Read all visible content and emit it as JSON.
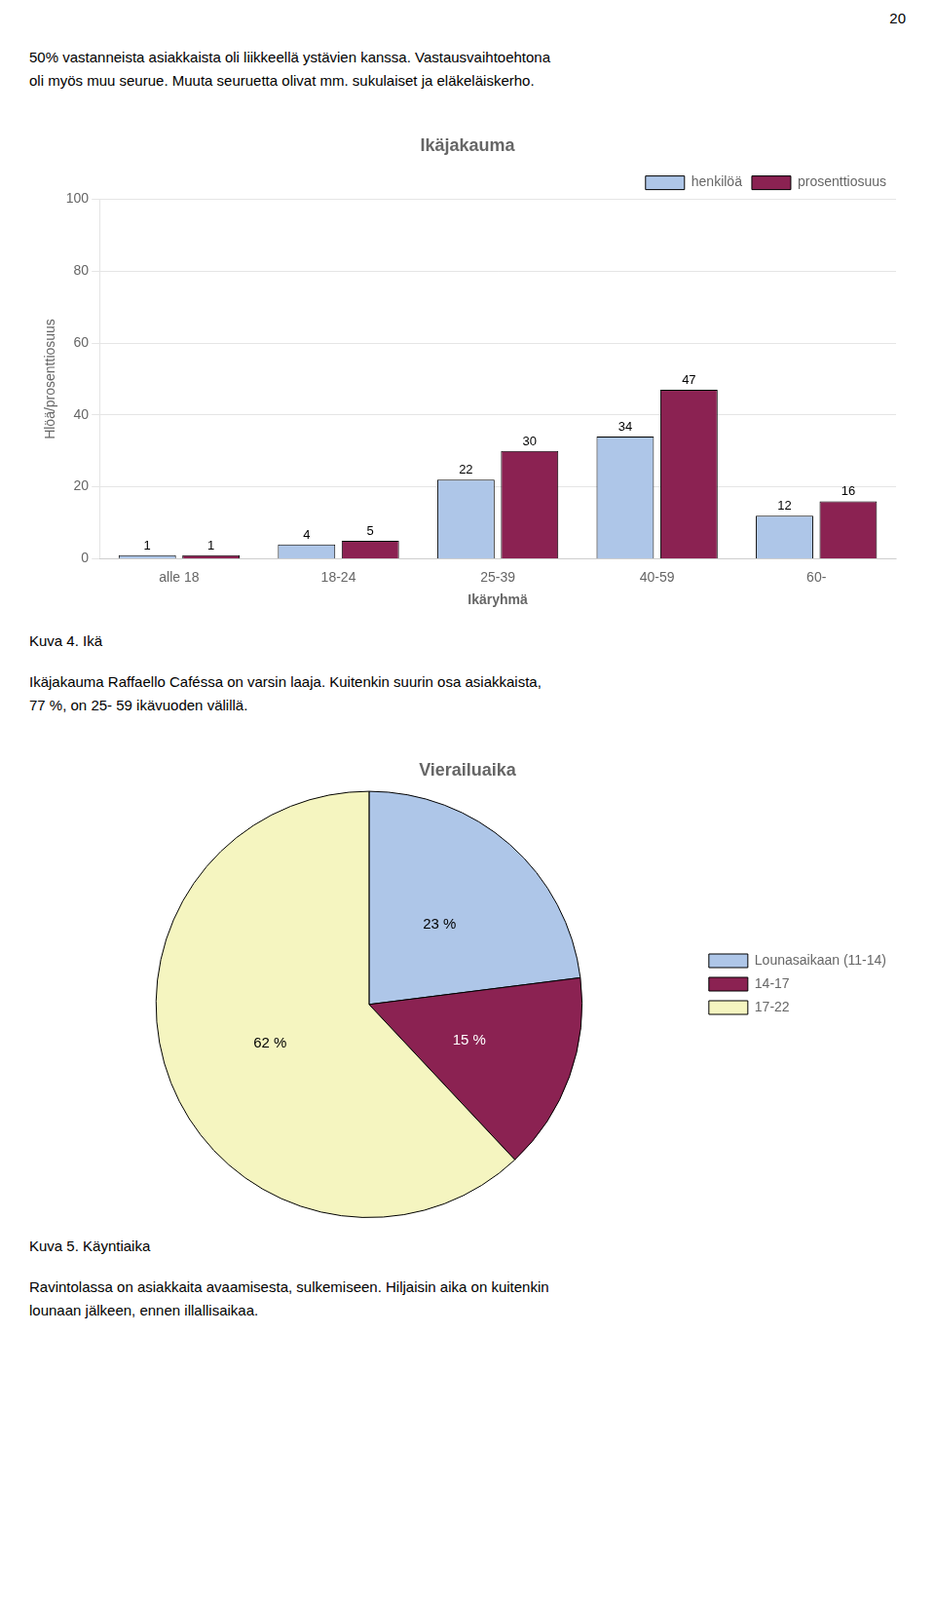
{
  "page_number": "20",
  "text_top": [
    "50% vastanneista asiakkaista oli liikkeellä ystävien kanssa. Vastausvaihtoehtona",
    "oli myös muu seurue. Muuta seuruetta olivat mm. sukulaiset ja eläkeläiskerho."
  ],
  "chart_data": [
    {
      "type": "bar",
      "title": "Ikäjakauma",
      "categories": [
        "alle 18",
        "18-24",
        "25-39",
        "40-59",
        "60-"
      ],
      "series": [
        {
          "name": "henkilöä",
          "color": "#aec6e8",
          "values": [
            1,
            4,
            22,
            34,
            12
          ]
        },
        {
          "name": "prosenttiosuus",
          "color": "#8b2252",
          "values": [
            1,
            5,
            30,
            47,
            16
          ]
        }
      ],
      "xlabel": "Ikäryhmä",
      "ylabel": "Hlöä/prosenttiosuus",
      "ylim": [
        0,
        100
      ],
      "yticks": [
        0,
        20,
        40,
        60,
        80,
        100
      ],
      "grid": true,
      "legend": "upper right",
      "data_labels": true,
      "caption": "Kuva 4. Ikä",
      "text_after": [
        "Ikäjakauma Raffaello Caféssa on varsin laaja. Kuitenkin suurin osa asiakkaista,",
        "77 %, on 25- 59 ikävuoden välillä."
      ]
    },
    {
      "type": "pie",
      "title": "Vierailuaika",
      "categories": [
        "Lounasaikaan (11-14)",
        "14-17",
        "17-22"
      ],
      "values": [
        23,
        15,
        62
      ],
      "value_labels": [
        "23 %",
        "15 %",
        "62 %"
      ],
      "colors": [
        "#aec6e8",
        "#8b2252",
        "#f5f5c0"
      ],
      "legend": "right",
      "data_labels": true,
      "caption": "Kuva 5. Käyntiaika",
      "text_after": [
        "Ravintolassa on asiakkaita avaamisesta, sulkemiseen. Hiljaisin aika on kuitenkin",
        "lounaan jälkeen, ennen illallisaikaa."
      ]
    }
  ]
}
